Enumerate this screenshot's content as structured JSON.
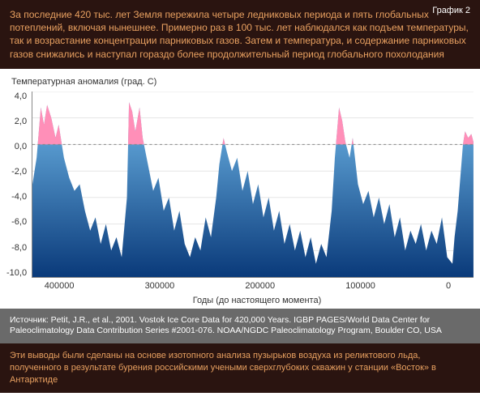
{
  "header": {
    "text": "За последние 420 тыс. лет Земля пережила четыре ледниковых периода и пять глобальных потеплений, включая нынешнее. Примерно раз в 100 тыс. лет наблюдался как подъем температуры, так и возрастание концентрации парниковых газов. Затем и температура, и содержание парниковых газов снижались и наступал гораздо более продолжительный период глобального похолодания",
    "graphic_label": "График 2",
    "bg_color": "#2a1410",
    "text_color": "#e8a060",
    "label_color": "#ffffff",
    "fontsize": 12
  },
  "chart": {
    "type": "area",
    "y_axis_title": "Температурная аномалия (град. С)",
    "x_axis_title": "Годы (до настоящего момента)",
    "ylim": [
      -10.0,
      4.0
    ],
    "ytick_step": 2.0,
    "yticks": [
      "4,0",
      "2,0",
      "0,0",
      "-2,0",
      "-4,0",
      "-6,0",
      "-8,0",
      "-10,0"
    ],
    "xlim": [
      420000,
      0
    ],
    "xticks": [
      400000,
      300000,
      200000,
      100000,
      0
    ],
    "xtick_labels": [
      "400000",
      "300000",
      "200000",
      "100000",
      "0"
    ],
    "gradient_top": "#6fb7e8",
    "gradient_bottom": "#0a3a7a",
    "positive_fill": "#ff8fb8",
    "zero_line_color": "#888888",
    "grid_color": "#cccccc",
    "background_color": "#ffffff",
    "label_fontsize": 11,
    "series": [
      {
        "x": 420000,
        "y": -3.0
      },
      {
        "x": 416000,
        "y": -1.0
      },
      {
        "x": 412000,
        "y": 2.8
      },
      {
        "x": 409000,
        "y": 1.5
      },
      {
        "x": 406000,
        "y": 3.0
      },
      {
        "x": 402000,
        "y": 2.0
      },
      {
        "x": 398000,
        "y": 0.5
      },
      {
        "x": 395000,
        "y": 1.5
      },
      {
        "x": 390000,
        "y": -1.0
      },
      {
        "x": 385000,
        "y": -2.5
      },
      {
        "x": 380000,
        "y": -3.5
      },
      {
        "x": 375000,
        "y": -3.0
      },
      {
        "x": 370000,
        "y": -5.0
      },
      {
        "x": 365000,
        "y": -6.5
      },
      {
        "x": 360000,
        "y": -5.5
      },
      {
        "x": 355000,
        "y": -7.5
      },
      {
        "x": 350000,
        "y": -6.0
      },
      {
        "x": 345000,
        "y": -8.0
      },
      {
        "x": 340000,
        "y": -7.0
      },
      {
        "x": 335000,
        "y": -8.5
      },
      {
        "x": 330000,
        "y": -4.0
      },
      {
        "x": 328000,
        "y": 3.2
      },
      {
        "x": 325000,
        "y": 2.5
      },
      {
        "x": 322000,
        "y": 1.0
      },
      {
        "x": 318000,
        "y": 2.8
      },
      {
        "x": 315000,
        "y": 0.5
      },
      {
        "x": 310000,
        "y": -1.5
      },
      {
        "x": 305000,
        "y": -3.5
      },
      {
        "x": 300000,
        "y": -2.5
      },
      {
        "x": 295000,
        "y": -5.0
      },
      {
        "x": 290000,
        "y": -4.0
      },
      {
        "x": 285000,
        "y": -6.5
      },
      {
        "x": 280000,
        "y": -5.0
      },
      {
        "x": 275000,
        "y": -7.5
      },
      {
        "x": 270000,
        "y": -8.5
      },
      {
        "x": 265000,
        "y": -7.0
      },
      {
        "x": 260000,
        "y": -8.0
      },
      {
        "x": 255000,
        "y": -5.5
      },
      {
        "x": 250000,
        "y": -7.0
      },
      {
        "x": 245000,
        "y": -4.0
      },
      {
        "x": 242000,
        "y": -1.5
      },
      {
        "x": 238000,
        "y": 0.5
      },
      {
        "x": 235000,
        "y": -0.5
      },
      {
        "x": 230000,
        "y": -2.0
      },
      {
        "x": 225000,
        "y": -1.0
      },
      {
        "x": 220000,
        "y": -3.5
      },
      {
        "x": 215000,
        "y": -2.0
      },
      {
        "x": 210000,
        "y": -4.5
      },
      {
        "x": 205000,
        "y": -3.0
      },
      {
        "x": 200000,
        "y": -5.5
      },
      {
        "x": 195000,
        "y": -4.0
      },
      {
        "x": 190000,
        "y": -6.5
      },
      {
        "x": 185000,
        "y": -5.0
      },
      {
        "x": 180000,
        "y": -7.5
      },
      {
        "x": 175000,
        "y": -6.0
      },
      {
        "x": 170000,
        "y": -8.0
      },
      {
        "x": 165000,
        "y": -6.5
      },
      {
        "x": 160000,
        "y": -8.5
      },
      {
        "x": 155000,
        "y": -7.0
      },
      {
        "x": 150000,
        "y": -9.0
      },
      {
        "x": 145000,
        "y": -7.5
      },
      {
        "x": 140000,
        "y": -8.5
      },
      {
        "x": 135000,
        "y": -5.0
      },
      {
        "x": 132000,
        "y": -1.0
      },
      {
        "x": 128000,
        "y": 2.8
      },
      {
        "x": 125000,
        "y": 1.8
      },
      {
        "x": 122000,
        "y": 0.2
      },
      {
        "x": 118000,
        "y": -1.0
      },
      {
        "x": 115000,
        "y": 0.5
      },
      {
        "x": 110000,
        "y": -3.0
      },
      {
        "x": 105000,
        "y": -4.5
      },
      {
        "x": 100000,
        "y": -3.5
      },
      {
        "x": 95000,
        "y": -5.5
      },
      {
        "x": 90000,
        "y": -4.0
      },
      {
        "x": 85000,
        "y": -6.0
      },
      {
        "x": 80000,
        "y": -4.5
      },
      {
        "x": 75000,
        "y": -7.0
      },
      {
        "x": 70000,
        "y": -5.5
      },
      {
        "x": 65000,
        "y": -8.0
      },
      {
        "x": 60000,
        "y": -6.5
      },
      {
        "x": 55000,
        "y": -7.5
      },
      {
        "x": 50000,
        "y": -6.0
      },
      {
        "x": 45000,
        "y": -8.0
      },
      {
        "x": 40000,
        "y": -6.5
      },
      {
        "x": 35000,
        "y": -7.5
      },
      {
        "x": 30000,
        "y": -5.5
      },
      {
        "x": 25000,
        "y": -8.5
      },
      {
        "x": 20000,
        "y": -9.0
      },
      {
        "x": 18000,
        "y": -7.0
      },
      {
        "x": 15000,
        "y": -5.0
      },
      {
        "x": 12000,
        "y": -2.0
      },
      {
        "x": 10000,
        "y": 0.0
      },
      {
        "x": 8000,
        "y": 1.0
      },
      {
        "x": 5000,
        "y": 0.5
      },
      {
        "x": 2000,
        "y": 0.8
      },
      {
        "x": 0,
        "y": 0.2
      }
    ]
  },
  "source": {
    "text": "Источник: Petit, J.R., et al., 2001. Vostok Ice Core Data for 420,000 Years. IGBP PAGES/World Data Center for Paleoclimatology Data Contribution Series #2001-076. NOAA/NGDC Paleoclimatology Program, Boulder CO, USA",
    "bg_color": "#6a6a6a",
    "text_color": "#ffffff",
    "fontsize": 10.5
  },
  "footer": {
    "text": "Эти выводы были сделаны на основе изотопного анализа пузырьков воздуха из реликтового льда, полученного в результате бурения российскими учеными сверхглубоких скважин у станции «Восток» в Антарктиде",
    "bg_color": "#2a1410",
    "text_color": "#e8a060",
    "fontsize": 11
  }
}
